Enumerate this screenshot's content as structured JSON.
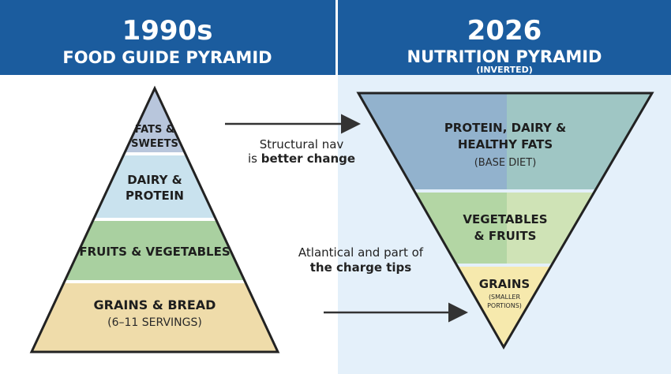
{
  "colors": {
    "header_blue": "#1b5c9e",
    "right_background": "#e4f0fa",
    "fats": "#b8c6dc",
    "dairy": "#c9e2ee",
    "fruits_veg": "#a9d0a0",
    "grains": "#efdcaa",
    "protein_left": "#92b2cd",
    "protein_right": "#9fc6c4",
    "veg_left": "#b3d6a4",
    "veg_right": "#cfe3b6",
    "grains_inverted": "#f6e9ad"
  },
  "left": {
    "title": "1990s",
    "subtitle": "FOOD GUIDE PYRAMID",
    "tiers": [
      {
        "line1": "FATS &",
        "line2": "SWEETS"
      },
      {
        "line1": "DAIRY &",
        "line2": "PROTEIN"
      },
      {
        "line1": "FRUITS & VEGETABLES"
      },
      {
        "line1": "GRAINS & BREAD",
        "note": "(6–11 SERVINGS)"
      }
    ]
  },
  "right": {
    "title": "2026",
    "subtitle": "NUTRITION PYRAMID",
    "subtitle_note": "(INVERTED)",
    "tiers": [
      {
        "line1": "PROTEIN, DAIRY &",
        "line2": "HEALTHY FATS",
        "note": "(BASE DIET)"
      },
      {
        "line1": "VEGETABLES",
        "line2": "& FRUITS"
      },
      {
        "line1": "GRAINS",
        "note1": "(SMALLER",
        "note2": "PORTIONS)"
      }
    ]
  },
  "annotations": {
    "top_line1": "Structural nav",
    "top_line2_plain": "is ",
    "top_line2_bold": "better change",
    "bottom_line1": "Atlantical and part of",
    "bottom_line2": "the charge tips"
  }
}
